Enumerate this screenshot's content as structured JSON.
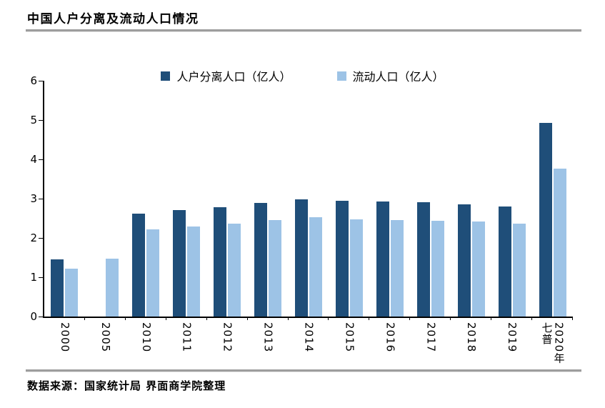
{
  "title": "中国人户分离及流动人口情况",
  "source": "数据来源：国家统计局 界面商学院整理",
  "colors": {
    "series1": "#1F4E79",
    "series2": "#9DC3E6",
    "axis": "#000000",
    "rule": "#9D9D9D"
  },
  "chart_data": {
    "type": "bar",
    "title": "中国人户分离及流动人口情况",
    "categories": [
      "2000",
      "2005",
      "2010",
      "2011",
      "2012",
      "2013",
      "2014",
      "2015",
      "2016",
      "2017",
      "2018",
      "2019",
      "2020年\n七普"
    ],
    "series": [
      {
        "name": "人户分离人口（亿人）",
        "color": "#1F4E79",
        "values": [
          1.45,
          null,
          2.61,
          2.71,
          2.79,
          2.9,
          2.98,
          2.94,
          2.92,
          2.91,
          2.86,
          2.8,
          4.93
        ]
      },
      {
        "name": "流动人口（亿人）",
        "color": "#9DC3E6",
        "values": [
          1.21,
          1.47,
          2.21,
          2.3,
          2.37,
          2.45,
          2.53,
          2.47,
          2.45,
          2.44,
          2.41,
          2.36,
          3.76
        ]
      }
    ],
    "xlabel": "",
    "ylabel": "",
    "ylim": [
      0,
      6
    ],
    "yticks": [
      0,
      1,
      2,
      3,
      4,
      5,
      6
    ],
    "grid": false,
    "legend_position": "top-center"
  }
}
